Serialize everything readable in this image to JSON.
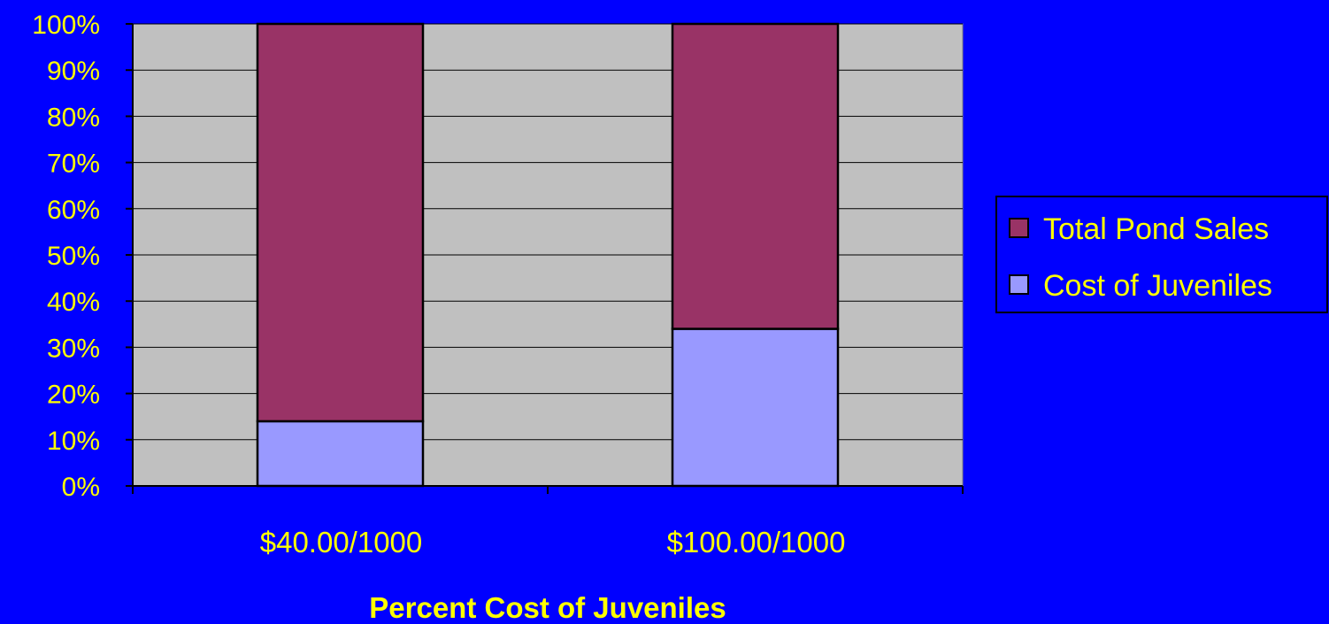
{
  "chart_data": {
    "type": "bar",
    "stacked": true,
    "percent_stacked": true,
    "categories": [
      "$40.00/1000",
      "$100.00/1000"
    ],
    "series": [
      {
        "name": "Cost of Juveniles",
        "values": [
          14,
          34
        ],
        "color": "#9999FF"
      },
      {
        "name": "Total Pond Sales",
        "values": [
          86,
          66
        ],
        "color": "#993366"
      }
    ],
    "title": "",
    "xlabel": "Percent Cost of Juveniles",
    "ylabel": "",
    "ylim": [
      0,
      100
    ],
    "yticks": [
      "0%",
      "10%",
      "20%",
      "30%",
      "40%",
      "50%",
      "60%",
      "70%",
      "80%",
      "90%",
      "100%"
    ],
    "grid": true,
    "legend": {
      "placement": "right",
      "entries": [
        "Total Pond Sales",
        "Cost of Juveniles"
      ]
    },
    "colors": {
      "background": "#0000FF",
      "plot_area": "#C0C0C0",
      "text": "#FFFF00"
    }
  }
}
